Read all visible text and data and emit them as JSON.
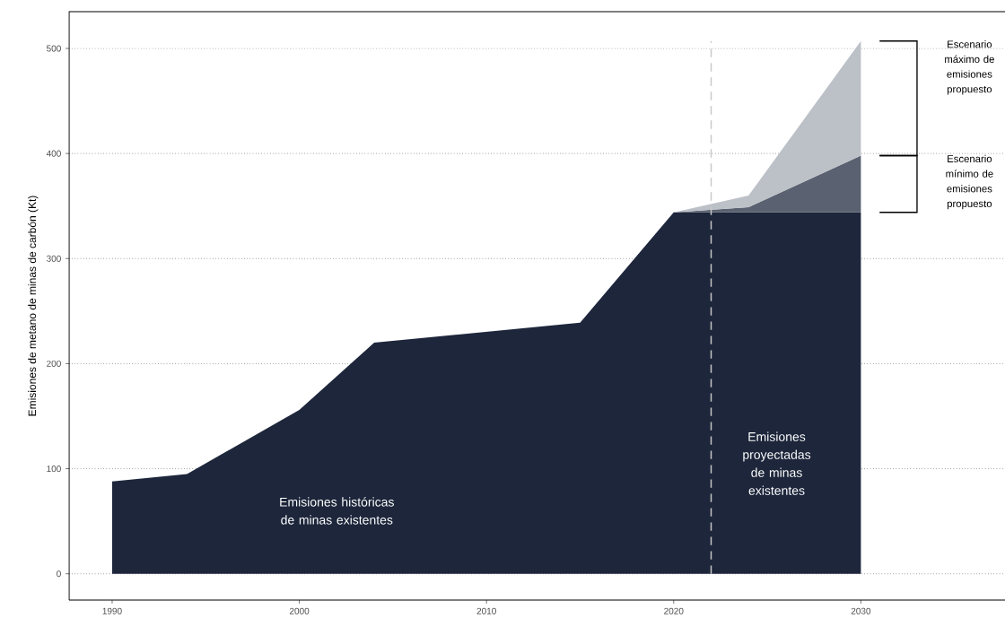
{
  "chart_data": {
    "type": "area",
    "ylabel": "Emisiones de metano de minas de carbón (Kt)",
    "stacked": true,
    "grid": "y",
    "series": [
      {
        "color": "#1d263b",
        "values": [
          88,
          95,
          156,
          220,
          239,
          344,
          344,
          344
        ]
      },
      {
        "color": "#5a6170",
        "values": [
          null,
          null,
          null,
          null,
          null,
          0,
          5,
          54
        ]
      },
      {
        "color": "#bcc0c7",
        "values": [
          null,
          null,
          null,
          null,
          null,
          0,
          11,
          109
        ]
      }
    ],
    "x": [
      1990,
      1994,
      2000,
      2004,
      2015,
      2020,
      2024,
      2030
    ],
    "xlim": [
      1987.7,
      2037.7
    ],
    "ylim": [
      -25,
      535
    ],
    "xticks": [
      1990,
      2000,
      2010,
      2020,
      2030
    ],
    "yticks": [
      0,
      100,
      200,
      300,
      400,
      500
    ],
    "ref_lines": [
      {
        "axis": "x",
        "value": 2022,
        "color": "#c8c8c8",
        "line_style": "dashed"
      }
    ],
    "annotations": [
      "Emisiones históricas de minas existentes",
      "Emisiones proyectadas de minas existentes",
      "Escenario máximo de emisiones propuesto",
      "Escenario mínimo de emisiones propuesto"
    ]
  }
}
